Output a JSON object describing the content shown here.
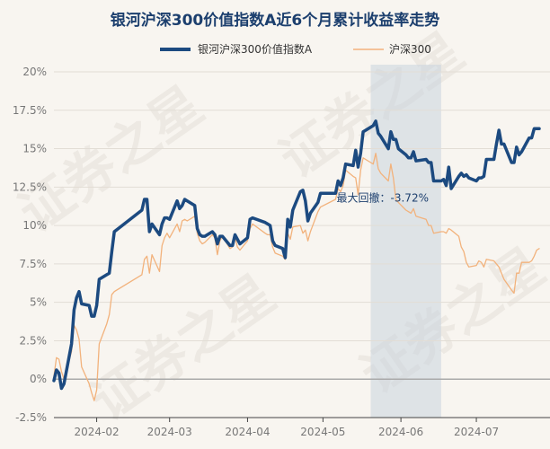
{
  "chart_data": {
    "type": "line",
    "title": "银河沪深300价值指数A近6个月累计收益率走势",
    "watermark": "证券之星",
    "y_unit": "%",
    "ylim": [
      -2.5,
      20
    ],
    "y_ticks": [
      "20%",
      "17.5%",
      "15%",
      "12.5%",
      "10%",
      "7.5%",
      "5%",
      "2.5%",
      "0%",
      "-2.5%"
    ],
    "y_tick_values": [
      20,
      17.5,
      15,
      12.5,
      10,
      7.5,
      5,
      2.5,
      0,
      -2.5
    ],
    "xlim": [
      "2024-01-15",
      "2024-07-26"
    ],
    "x_ticks": [
      "2024-02",
      "2024-03",
      "2024-04",
      "2024-05",
      "2024-06",
      "2024-07"
    ],
    "x_tick_dates": [
      "2024-02-01",
      "2024-03-01",
      "2024-04-01",
      "2024-05-01",
      "2024-06-01",
      "2024-07-01"
    ],
    "legend_position": "top",
    "grid": "horizontal",
    "annotation": {
      "label": "最大回撤：-3.72%",
      "shade_start": "2024-05-20",
      "shade_end": "2024-06-17"
    },
    "colors": {
      "fund": "#1c4a80",
      "index": "#f2b27c",
      "shade": "#c9d4de",
      "zero": "#aaaaaa"
    },
    "series": [
      {
        "name": "银河沪深300价值指数A",
        "x": [
          "2024-01-15",
          "2024-01-16",
          "2024-01-17",
          "2024-01-18",
          "2024-01-19",
          "2024-01-22",
          "2024-01-23",
          "2024-01-24",
          "2024-01-25",
          "2024-01-26",
          "2024-01-29",
          "2024-01-30",
          "2024-01-31",
          "2024-02-01",
          "2024-02-02",
          "2024-02-05",
          "2024-02-06",
          "2024-02-07",
          "2024-02-08",
          "2024-02-19",
          "2024-02-20",
          "2024-02-21",
          "2024-02-22",
          "2024-02-23",
          "2024-02-26",
          "2024-02-27",
          "2024-02-28",
          "2024-02-29",
          "2024-03-01",
          "2024-03-04",
          "2024-03-05",
          "2024-03-06",
          "2024-03-07",
          "2024-03-08",
          "2024-03-11",
          "2024-03-12",
          "2024-03-13",
          "2024-03-14",
          "2024-03-15",
          "2024-03-18",
          "2024-03-19",
          "2024-03-20",
          "2024-03-21",
          "2024-03-22",
          "2024-03-25",
          "2024-03-26",
          "2024-03-27",
          "2024-03-28",
          "2024-03-29",
          "2024-04-01",
          "2024-04-02",
          "2024-04-03",
          "2024-04-08",
          "2024-04-09",
          "2024-04-10",
          "2024-04-11",
          "2024-04-12",
          "2024-04-15",
          "2024-04-16",
          "2024-04-17",
          "2024-04-18",
          "2024-04-19",
          "2024-04-22",
          "2024-04-23",
          "2024-04-24",
          "2024-04-25",
          "2024-04-26",
          "2024-04-29",
          "2024-04-30",
          "2024-05-06",
          "2024-05-07",
          "2024-05-08",
          "2024-05-09",
          "2024-05-10",
          "2024-05-13",
          "2024-05-14",
          "2024-05-15",
          "2024-05-16",
          "2024-05-17",
          "2024-05-20",
          "2024-05-21",
          "2024-05-22",
          "2024-05-23",
          "2024-05-24",
          "2024-05-27",
          "2024-05-28",
          "2024-05-29",
          "2024-05-30",
          "2024-05-31",
          "2024-06-03",
          "2024-06-04",
          "2024-06-05",
          "2024-06-06",
          "2024-06-07",
          "2024-06-11",
          "2024-06-12",
          "2024-06-13",
          "2024-06-14",
          "2024-06-17",
          "2024-06-18",
          "2024-06-19",
          "2024-06-20",
          "2024-06-21",
          "2024-06-24",
          "2024-06-25",
          "2024-06-26",
          "2024-06-27",
          "2024-06-28",
          "2024-07-01",
          "2024-07-02",
          "2024-07-03",
          "2024-07-04",
          "2024-07-05",
          "2024-07-08",
          "2024-07-09",
          "2024-07-10",
          "2024-07-11",
          "2024-07-12",
          "2024-07-15",
          "2024-07-16",
          "2024-07-17",
          "2024-07-18",
          "2024-07-19",
          "2024-07-22",
          "2024-07-23",
          "2024-07-24",
          "2024-07-25",
          "2024-07-26"
        ],
        "values": [
          -0.1,
          0.6,
          0.4,
          -0.6,
          -0.3,
          2.3,
          4.5,
          5.3,
          5.7,
          4.9,
          4.8,
          4.1,
          4.1,
          4.8,
          6.5,
          6.8,
          6.9,
          8.3,
          9.6,
          11.0,
          11.7,
          11.7,
          9.6,
          10.1,
          9.4,
          10.1,
          10.5,
          10.5,
          10.4,
          11.6,
          11.1,
          11.3,
          11.7,
          11.6,
          11.3,
          9.8,
          9.4,
          9.3,
          9.3,
          9.6,
          9.4,
          8.8,
          9.3,
          9.3,
          8.7,
          8.7,
          9.4,
          9.1,
          8.8,
          9.2,
          10.4,
          10.5,
          10.2,
          10.1,
          10.0,
          9.0,
          8.7,
          8.5,
          7.9,
          10.4,
          9.9,
          11.0,
          12.2,
          12.3,
          11.6,
          10.3,
          10.8,
          11.5,
          12.1,
          12.1,
          12.9,
          12.6,
          13.1,
          14.0,
          13.9,
          14.9,
          13.8,
          14.7,
          16.1,
          16.4,
          16.5,
          16.8,
          16.0,
          15.8,
          15.0,
          16.1,
          15.6,
          15.6,
          15.0,
          14.6,
          14.4,
          14.4,
          14.8,
          14.2,
          14.3,
          14.1,
          14.1,
          12.9,
          12.9,
          13.0,
          12.6,
          13.8,
          12.4,
          13.2,
          13.4,
          13.2,
          13.3,
          13.1,
          12.9,
          13.1,
          13.1,
          13.2,
          14.3,
          14.3,
          15.3,
          16.2,
          15.3,
          15.3,
          14.1,
          14.1,
          15.1,
          14.6,
          14.8,
          15.7,
          15.7,
          16.3,
          16.3,
          16.3
        ]
      },
      {
        "name": "沪深300",
        "x": [
          "2024-01-15",
          "2024-01-16",
          "2024-01-17",
          "2024-01-18",
          "2024-01-19",
          "2024-01-22",
          "2024-01-23",
          "2024-01-24",
          "2024-01-25",
          "2024-01-26",
          "2024-01-29",
          "2024-01-30",
          "2024-01-31",
          "2024-02-01",
          "2024-02-02",
          "2024-02-05",
          "2024-02-06",
          "2024-02-07",
          "2024-02-08",
          "2024-02-19",
          "2024-02-20",
          "2024-02-21",
          "2024-02-22",
          "2024-02-23",
          "2024-02-26",
          "2024-02-27",
          "2024-02-28",
          "2024-02-29",
          "2024-03-01",
          "2024-03-04",
          "2024-03-05",
          "2024-03-06",
          "2024-03-07",
          "2024-03-08",
          "2024-03-11",
          "2024-03-12",
          "2024-03-13",
          "2024-03-14",
          "2024-03-15",
          "2024-03-18",
          "2024-03-19",
          "2024-03-20",
          "2024-03-21",
          "2024-03-22",
          "2024-03-25",
          "2024-03-26",
          "2024-03-27",
          "2024-03-28",
          "2024-03-29",
          "2024-04-01",
          "2024-04-02",
          "2024-04-03",
          "2024-04-08",
          "2024-04-09",
          "2024-04-10",
          "2024-04-11",
          "2024-04-12",
          "2024-04-15",
          "2024-04-16",
          "2024-04-17",
          "2024-04-18",
          "2024-04-19",
          "2024-04-22",
          "2024-04-23",
          "2024-04-24",
          "2024-04-25",
          "2024-04-26",
          "2024-04-29",
          "2024-04-30",
          "2024-05-06",
          "2024-05-07",
          "2024-05-08",
          "2024-05-09",
          "2024-05-10",
          "2024-05-13",
          "2024-05-14",
          "2024-05-15",
          "2024-05-16",
          "2024-05-17",
          "2024-05-20",
          "2024-05-21",
          "2024-05-22",
          "2024-05-23",
          "2024-05-24",
          "2024-05-27",
          "2024-05-28",
          "2024-05-29",
          "2024-05-30",
          "2024-05-31",
          "2024-06-03",
          "2024-06-04",
          "2024-06-05",
          "2024-06-06",
          "2024-06-07",
          "2024-06-11",
          "2024-06-12",
          "2024-06-13",
          "2024-06-14",
          "2024-06-17",
          "2024-06-18",
          "2024-06-19",
          "2024-06-20",
          "2024-06-21",
          "2024-06-24",
          "2024-06-25",
          "2024-06-26",
          "2024-06-27",
          "2024-06-28",
          "2024-07-01",
          "2024-07-02",
          "2024-07-03",
          "2024-07-04",
          "2024-07-05",
          "2024-07-08",
          "2024-07-09",
          "2024-07-10",
          "2024-07-11",
          "2024-07-12",
          "2024-07-15",
          "2024-07-16",
          "2024-07-17",
          "2024-07-18",
          "2024-07-19",
          "2024-07-22",
          "2024-07-23",
          "2024-07-24",
          "2024-07-25",
          "2024-07-26"
        ],
        "values": [
          0.2,
          1.4,
          1.3,
          0.5,
          0.0,
          1.8,
          3.5,
          3.2,
          2.6,
          0.8,
          -0.3,
          -0.9,
          -1.4,
          -0.7,
          2.3,
          3.6,
          4.2,
          5.5,
          5.7,
          6.8,
          7.8,
          8.0,
          6.9,
          8.1,
          7.0,
          8.7,
          9.2,
          9.5,
          9.2,
          10.1,
          9.6,
          10.3,
          10.4,
          10.3,
          10.6,
          9.5,
          9.0,
          8.8,
          8.9,
          9.4,
          9.2,
          8.1,
          9.0,
          9.3,
          8.5,
          8.6,
          9.2,
          8.6,
          8.4,
          9.0,
          9.8,
          10.1,
          9.5,
          9.4,
          9.4,
          8.6,
          8.2,
          8.0,
          7.8,
          9.5,
          9.1,
          9.9,
          10.0,
          9.5,
          9.7,
          9.0,
          9.6,
          10.9,
          11.2,
          11.7,
          12.4,
          12.2,
          12.6,
          13.6,
          13.2,
          13.1,
          12.0,
          13.6,
          14.4,
          14.1,
          14.0,
          14.7,
          13.7,
          13.4,
          12.9,
          14.0,
          13.1,
          11.7,
          11.5,
          11.0,
          10.9,
          10.8,
          11.1,
          10.6,
          10.4,
          10.0,
          10.0,
          9.5,
          9.6,
          9.6,
          9.5,
          9.8,
          9.7,
          9.3,
          8.6,
          8.3,
          7.6,
          7.3,
          7.4,
          7.7,
          7.6,
          7.3,
          7.8,
          7.7,
          7.5,
          7.3,
          6.9,
          6.5,
          5.8,
          5.6,
          6.9,
          6.9,
          7.6,
          7.6,
          7.7,
          8.0,
          8.4,
          8.5
        ]
      }
    ]
  }
}
